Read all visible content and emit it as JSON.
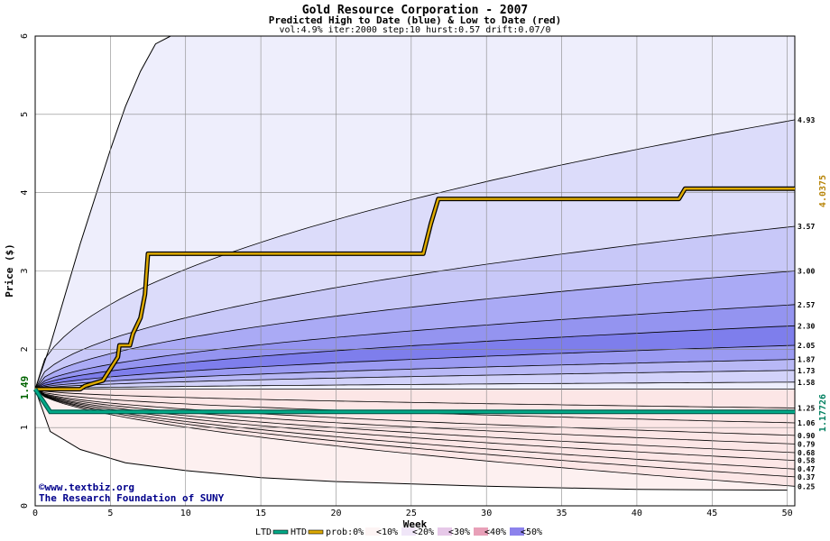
{
  "chart_data": {
    "type": "area",
    "title": "Gold Resource Corporation - 2007",
    "subtitle": "Predicted High to Date (blue) &  Low to Date (red)",
    "params": "vol:4.9% iter:2000 step:10 hurst:0.57 drift:0.07/0",
    "xlabel": "Week",
    "ylabel": "Price ($)",
    "xlim": [
      0,
      50.5
    ],
    "ylim": [
      0,
      6
    ],
    "x_ticks": [
      0,
      5,
      10,
      15,
      20,
      25,
      30,
      35,
      40,
      45,
      50
    ],
    "y_ticks": [
      0,
      1,
      2,
      3,
      4,
      5,
      6
    ],
    "grid": true,
    "start_price": 1.49,
    "start_label": "1.49",
    "high_end_label": "4.0375",
    "low_end_label": "1.17726",
    "credit_lines": [
      "©www.textbiz.org",
      "The Research Foundation of SUNY"
    ],
    "upper_bands": [
      {
        "end": 4.93,
        "label": "4.93",
        "color": "#dcdcfa"
      },
      {
        "end": 3.57,
        "label": "3.57",
        "color": "#c8c8f8"
      },
      {
        "end": 3.0,
        "label": "3.00",
        "color": "#aaaaf5"
      },
      {
        "end": 2.57,
        "label": "2.57",
        "color": "#9494f0"
      },
      {
        "end": 2.3,
        "label": "2.30",
        "color": "#7e7eec"
      },
      {
        "end": 2.05,
        "label": "2.05",
        "color": "#9a9af2"
      },
      {
        "end": 1.87,
        "label": "1.87",
        "color": "#b8b8f6"
      },
      {
        "end": 1.73,
        "label": "1.73",
        "color": "#d2d2fa"
      },
      {
        "end": 1.58,
        "label": "1.58",
        "color": "#eeeefd"
      }
    ],
    "lower_bands": [
      {
        "end": 1.25,
        "label": "1.25",
        "color": "#fdeeee"
      },
      {
        "end": 1.06,
        "label": "1.06",
        "color": "#fbdede"
      },
      {
        "end": 0.9,
        "label": "0.90",
        "color": "#f8c8c8"
      },
      {
        "end": 0.79,
        "label": "0.79",
        "color": "#f5b0b0"
      },
      {
        "end": 0.68,
        "label": "0.68",
        "color": "#f29a9a"
      },
      {
        "end": 0.58,
        "label": "0.58",
        "color": "#f08a8a"
      },
      {
        "end": 0.47,
        "label": "0.47",
        "color": "#f4a8a8"
      },
      {
        "end": 0.37,
        "label": "0.37",
        "color": "#f8caca"
      },
      {
        "end": 0.25,
        "label": "0.25",
        "color": "#fce6e6"
      }
    ],
    "outer_upper_points": [
      [
        0,
        1.49
      ],
      [
        1,
        2.05
      ],
      [
        2,
        2.7
      ],
      [
        3,
        3.35
      ],
      [
        4,
        3.95
      ],
      [
        5,
        4.55
      ],
      [
        6,
        5.1
      ],
      [
        7,
        5.55
      ],
      [
        8,
        5.9
      ],
      [
        9,
        6.0
      ]
    ],
    "outer_lower_points": [
      [
        0,
        1.49
      ],
      [
        1,
        0.95
      ],
      [
        3,
        0.72
      ],
      [
        6,
        0.55
      ],
      [
        10,
        0.45
      ],
      [
        15,
        0.36
      ],
      [
        20,
        0.31
      ],
      [
        30,
        0.25
      ],
      [
        40,
        0.21
      ],
      [
        50,
        0.2
      ]
    ],
    "htd_series": {
      "name": "HTD",
      "color": "#ddaa00",
      "points": [
        [
          0,
          1.49
        ],
        [
          3,
          1.49
        ],
        [
          3.3,
          1.53
        ],
        [
          4.5,
          1.6
        ],
        [
          5,
          1.75
        ],
        [
          5.5,
          1.9
        ],
        [
          5.6,
          2.05
        ],
        [
          6.3,
          2.05
        ],
        [
          6.5,
          2.2
        ],
        [
          7,
          2.4
        ],
        [
          7.3,
          2.7
        ],
        [
          7.5,
          3.22
        ],
        [
          25.8,
          3.22
        ],
        [
          26.3,
          3.6
        ],
        [
          26.8,
          3.92
        ],
        [
          42.8,
          3.92
        ],
        [
          43.2,
          4.05
        ],
        [
          50.5,
          4.05
        ]
      ]
    },
    "ltd_series": {
      "name": "LTD",
      "color": "#00aa88",
      "points": [
        [
          0,
          1.49
        ],
        [
          1,
          1.2
        ],
        [
          50.5,
          1.2
        ]
      ]
    },
    "legend": [
      {
        "label": "LTD",
        "kind": "line",
        "color": "#00aa88"
      },
      {
        "label": "HTD",
        "kind": "line",
        "color": "#ddaa00"
      },
      {
        "label": "prob:0%",
        "kind": "text"
      },
      {
        "label": "<10%",
        "kind": "swatch",
        "color": "#fdf4f4"
      },
      {
        "label": "<20%",
        "kind": "swatch",
        "color": "#f0e6f8"
      },
      {
        "label": "<30%",
        "kind": "swatch",
        "color": "#e6c8e8"
      },
      {
        "label": "<40%",
        "kind": "swatch",
        "color": "#e8a0b8"
      },
      {
        "label": "<50%",
        "kind": "swatch",
        "color": "#8c82ec"
      }
    ]
  }
}
